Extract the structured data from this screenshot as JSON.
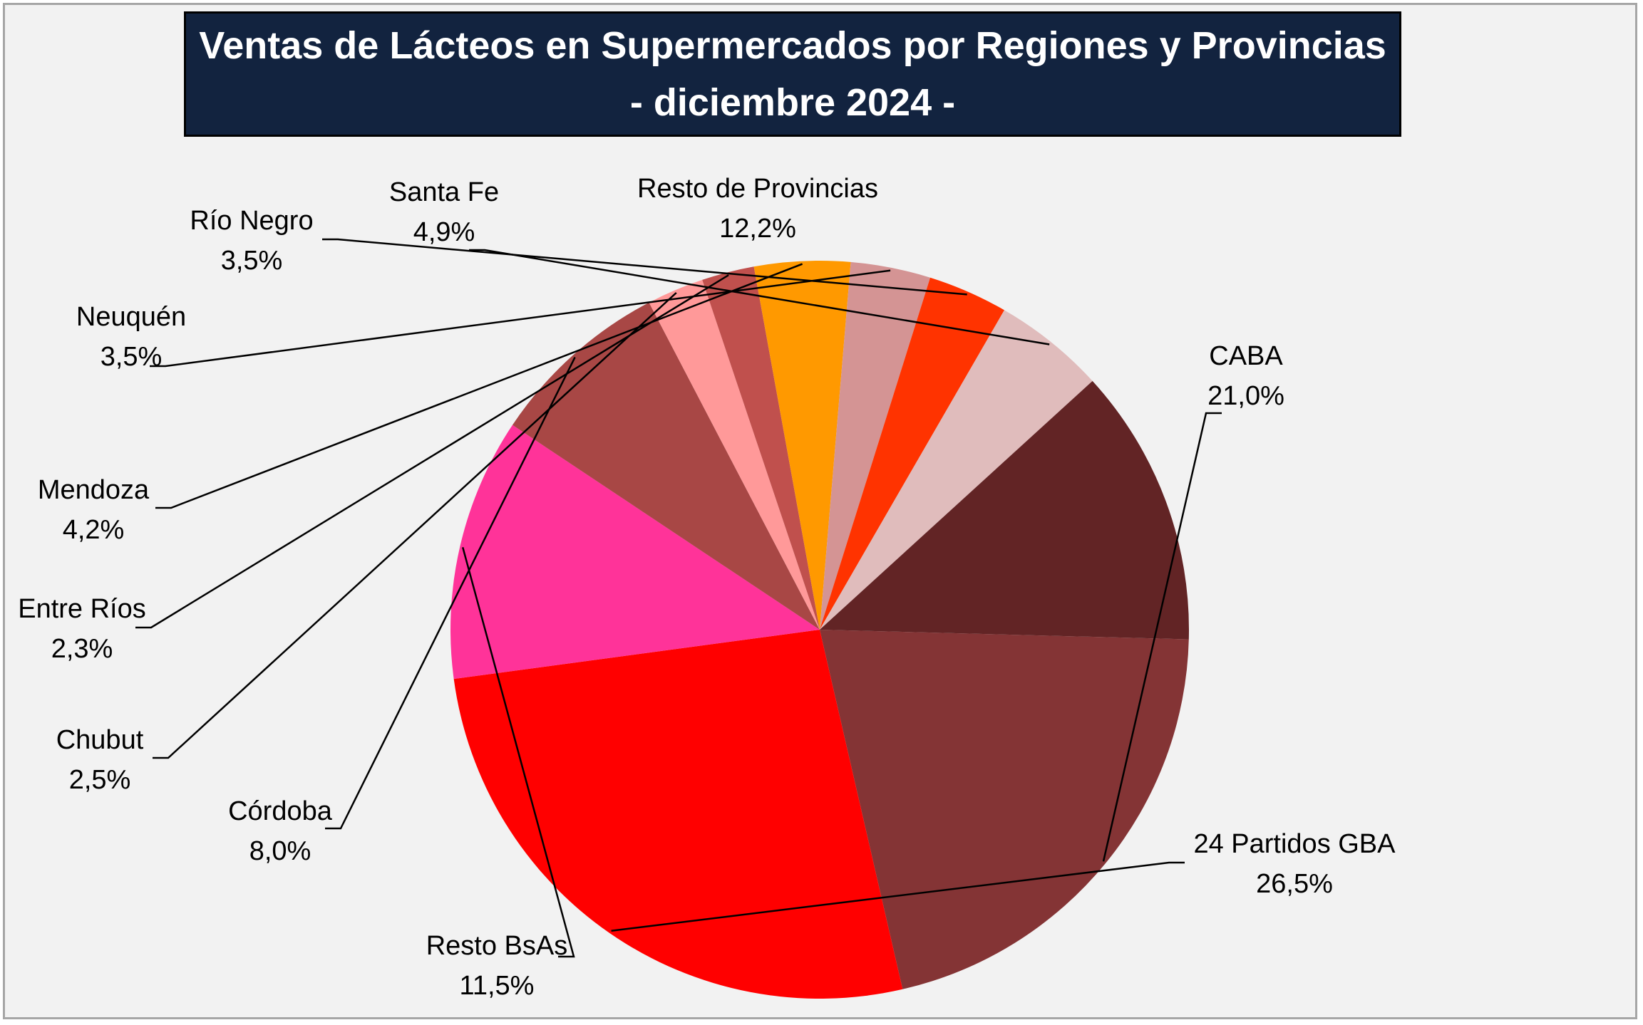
{
  "chart_data": {
    "type": "pie",
    "title_line1": "Ventas de Lácteos en Supermercados por Regiones y Provincias",
    "title_line2": "- diciembre 2024 -",
    "slices": [
      {
        "name": "CABA",
        "label": "21,0%",
        "value": 21.0,
        "color": "#843435"
      },
      {
        "name": "24 Partidos GBA",
        "label": "26,5%",
        "value": 26.5,
        "color": "#ff0000"
      },
      {
        "name": "Resto BsAs",
        "label": "11,5%",
        "value": 11.5,
        "color": "#ff3399"
      },
      {
        "name": "Córdoba",
        "label": "8,0%",
        "value": 8.0,
        "color": "#a84745"
      },
      {
        "name": "Chubut",
        "label": "2,5%",
        "value": 2.5,
        "color": "#ff9999"
      },
      {
        "name": "Entre Ríos",
        "label": "2,3%",
        "value": 2.3,
        "color": "#c0504d"
      },
      {
        "name": "Mendoza",
        "label": "4,2%",
        "value": 4.2,
        "color": "#ff9900"
      },
      {
        "name": "Neuquén",
        "label": "3,5%",
        "value": 3.5,
        "color": "#d49494"
      },
      {
        "name": "Río Negro",
        "label": "3,5%",
        "value": 3.5,
        "color": "#ff3300"
      },
      {
        "name": "Santa Fe",
        "label": "4,9%",
        "value": 4.9,
        "color": "#e0bcbc"
      },
      {
        "name": "Resto de Provincias",
        "label": "12,2%",
        "value": 12.2,
        "color": "#622425"
      }
    ],
    "start_angle_deg": 91.5,
    "direction": "clockwise-from-east"
  }
}
